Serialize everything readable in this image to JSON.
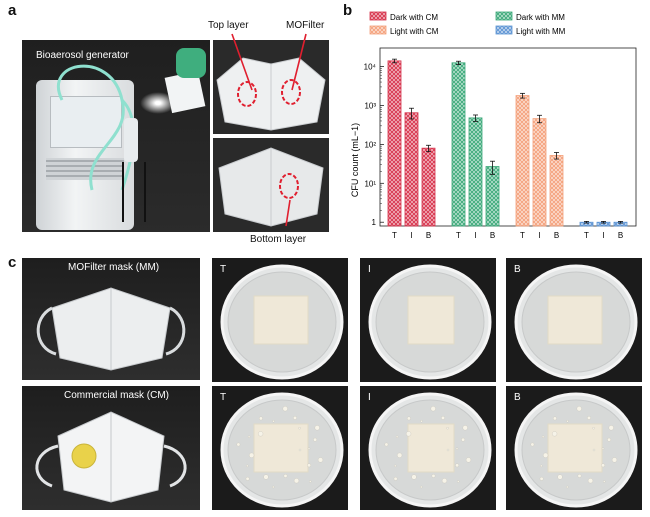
{
  "panels": {
    "a": {
      "letter": "a",
      "labels": {
        "generator": "Bioaerosol generator",
        "top_layer": "Top layer",
        "mofilter": "MOFilter",
        "bottom_layer": "Bottom layer"
      }
    },
    "b": {
      "letter": "b"
    },
    "c": {
      "letter": "c",
      "mm_label": "MOFilter mask (MM)",
      "cm_label": "Commercial mask (CM)",
      "plate_labels_top": [
        "T",
        "I",
        "B"
      ],
      "plate_labels_bottom": [
        "T",
        "I",
        "B"
      ]
    }
  },
  "chart_data": {
    "type": "bar",
    "ylabel": "CFU count (mL−1)",
    "yscale": "log",
    "ylim": [
      0.8,
      30000
    ],
    "yticks": [
      "1",
      "10¹",
      "10²",
      "10³",
      "10⁴"
    ],
    "categories": [
      "T",
      "I",
      "B"
    ],
    "series": [
      {
        "name": "Dark with CM",
        "values": [
          14000,
          650,
          80
        ],
        "errors": [
          1500,
          200,
          15
        ],
        "color": "#d6314a"
      },
      {
        "name": "Dark with MM",
        "values": [
          12500,
          480,
          27
        ],
        "errors": [
          1200,
          90,
          10
        ],
        "color": "#3aa878"
      },
      {
        "name": "Light with CM",
        "values": [
          1800,
          460,
          52
        ],
        "errors": [
          250,
          100,
          10
        ],
        "color": "#f4a07a"
      },
      {
        "name": "Light with MM",
        "values": [
          1,
          1,
          1
        ],
        "errors": [
          0.05,
          0.05,
          0.05
        ],
        "color": "#5b93d3"
      }
    ],
    "legend_position": "top"
  }
}
